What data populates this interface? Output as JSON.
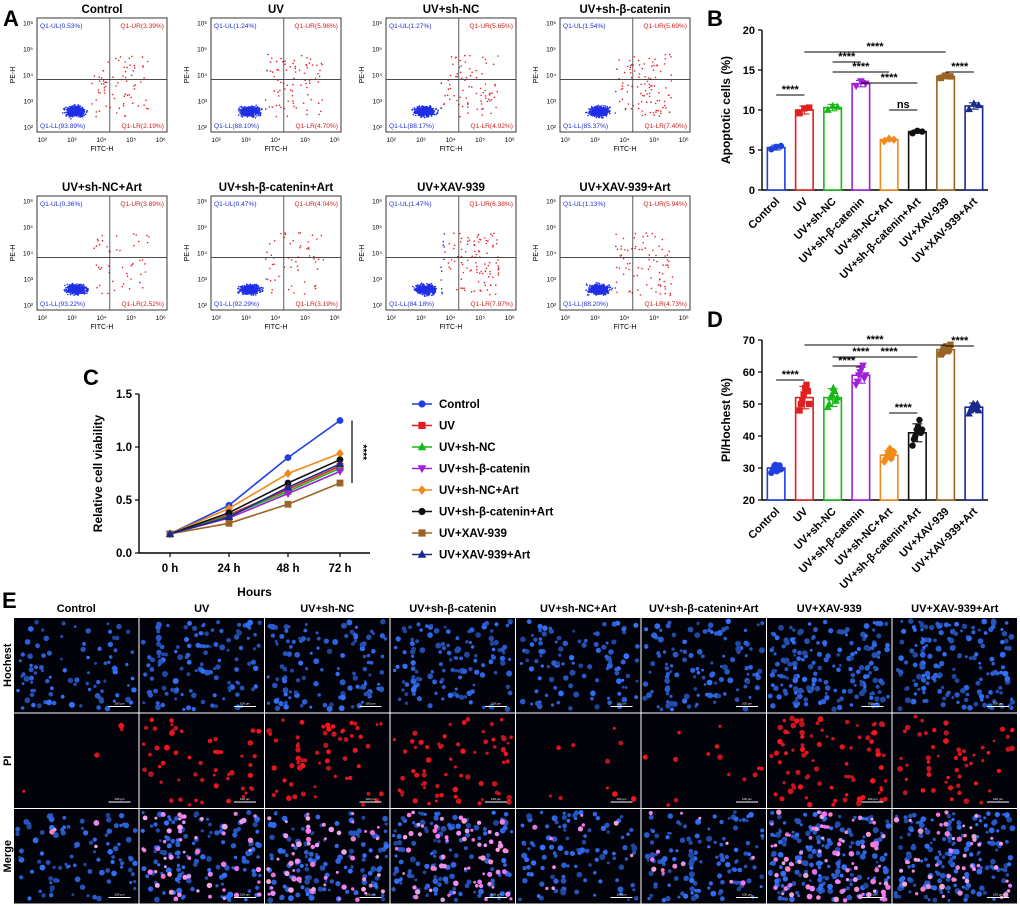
{
  "panel_letters": [
    "A",
    "B",
    "C",
    "D",
    "E"
  ],
  "flow": {
    "xlabel": "FITC-H",
    "ylabel": "PE-H",
    "ticks": [
      "10²",
      "10³",
      "10⁴",
      "10⁵",
      "10⁶"
    ],
    "panels": [
      {
        "title": "Control",
        "ul": "Q1-UL(0.53%)",
        "ur": "Q1-UR(3.39%)",
        "ll": "Q1-LL(93.89%)",
        "lr": "Q1-LR(2.19%)"
      },
      {
        "title": "UV",
        "ul": "Q1-UL(1.24%)",
        "ur": "Q1-UR(5.96%)",
        "ll": "Q1-LL(88.10%)",
        "lr": "Q1-LR(4.70%)"
      },
      {
        "title": "UV+sh-NC",
        "ul": "Q1-UL(1.27%)",
        "ur": "Q1-UR(5.65%)",
        "ll": "Q1-LL(88.17%)",
        "lr": "Q1-LR(4.92%)"
      },
      {
        "title": "UV+sh-β-catenin",
        "ul": "Q1-UL(1.54%)",
        "ur": "Q1-UR(5.69%)",
        "ll": "Q1-LL(85.37%)",
        "lr": "Q1-LR(7.40%)"
      },
      {
        "title": "UV+sh-NC+Art",
        "ul": "Q1-UL(0.36%)",
        "ur": "Q1-UR(3.89%)",
        "ll": "Q1-LL(93.22%)",
        "lr": "Q1-LR(2.52%)"
      },
      {
        "title": "UV+sh-β-catenin+Art",
        "ul": "Q1-UL(0.47%)",
        "ur": "Q1-UR(4.04%)",
        "ll": "Q1-LL(92.29%)",
        "lr": "Q1-LR(3.19%)"
      },
      {
        "title": "UV+XAV-939",
        "ul": "Q1-UL(1.47%)",
        "ur": "Q1-UR(6.38%)",
        "ll": "Q1-LL(84.18%)",
        "lr": "Q1-LR(7.97%)"
      },
      {
        "title": "UV+XAV-939+Art",
        "ul": "Q1-UL(1.13%)",
        "ur": "Q1-UR(5.94%)",
        "ll": "Q1-LL(88.20%)",
        "lr": "Q1-LR(4.73%)"
      }
    ]
  },
  "groups": [
    "Control",
    "UV",
    "UV+sh-NC",
    "UV+sh-β-catenin",
    "UV+sh-NC+Art",
    "UV+sh-β-catenin+Art",
    "UV+XAV-939",
    "UV+XAV-939+Art"
  ],
  "colors": {
    "Control": "#1f3fe0",
    "UV": "#e02020",
    "UV+sh-NC": "#18b818",
    "UV+sh-β-catenin": "#a020d8",
    "UV+sh-NC+Art": "#f08a1a",
    "UV+sh-β-catenin+Art": "#111111",
    "UV+XAV-939": "#9a6424",
    "UV+XAV-939+Art": "#1a2a8c",
    "flow_blue": "#1f2fe6",
    "flow_red": "#e8202a"
  },
  "chart_data": [
    {
      "id": "B",
      "type": "bar",
      "categories": [
        "Control",
        "UV",
        "UV+sh-NC",
        "UV+sh-β-catenin",
        "UV+sh-NC+Art",
        "UV+sh-β-catenin+Art",
        "UV+XAV-939",
        "UV+XAV-939+Art"
      ],
      "values": [
        5.3,
        10.0,
        10.3,
        13.3,
        6.3,
        7.3,
        14.2,
        10.5
      ],
      "errors": [
        0.3,
        0.5,
        0.4,
        0.4,
        0.2,
        0.2,
        0.3,
        0.4
      ],
      "points": [
        [
          5.1,
          5.4,
          5.5
        ],
        [
          9.6,
          10.2,
          10.3
        ],
        [
          10.0,
          10.5,
          10.4
        ],
        [
          13.0,
          13.6,
          13.3
        ],
        [
          6.1,
          6.4,
          6.3
        ],
        [
          7.1,
          7.4,
          7.3
        ],
        [
          14.0,
          14.3,
          14.2
        ],
        [
          10.1,
          10.8,
          10.6
        ]
      ],
      "markers": [
        "circle",
        "square",
        "triangle",
        "triangle-down",
        "diamond",
        "circle",
        "square",
        "triangle"
      ],
      "ylabel": "Apoptotic cells (%)",
      "ylim": [
        0,
        20
      ],
      "yticks": [
        "0",
        "5",
        "10",
        "15",
        "20"
      ],
      "significance": [
        {
          "from": 0,
          "to": 1,
          "label": "****"
        },
        {
          "from": 1,
          "to": 6,
          "label": "****"
        },
        {
          "from": 2,
          "to": 4,
          "label": "****"
        },
        {
          "from": 2,
          "to": 3,
          "label": "****"
        },
        {
          "from": 3,
          "to": 5,
          "label": "****"
        },
        {
          "from": 4,
          "to": 5,
          "label": "ns"
        },
        {
          "from": 6,
          "to": 7,
          "label": "****"
        }
      ]
    },
    {
      "id": "C",
      "type": "line",
      "x": [
        "0 h",
        "24 h",
        "48 h",
        "72 h"
      ],
      "xlabel": "Hours",
      "ylabel": "Relative cell viability",
      "ylim": [
        0,
        1.5
      ],
      "yticks": [
        "0.0",
        "0.5",
        "1.0",
        "1.5"
      ],
      "series": [
        {
          "name": "Control",
          "marker": "circle",
          "values": [
            0.18,
            0.45,
            0.9,
            1.25
          ]
        },
        {
          "name": "UV",
          "marker": "square",
          "values": [
            0.18,
            0.36,
            0.6,
            0.82
          ]
        },
        {
          "name": "UV+sh-NC",
          "marker": "triangle",
          "values": [
            0.18,
            0.35,
            0.58,
            0.8
          ]
        },
        {
          "name": "UV+sh-β-catenin",
          "marker": "triangle-down",
          "values": [
            0.18,
            0.33,
            0.56,
            0.77
          ]
        },
        {
          "name": "UV+sh-NC+Art",
          "marker": "diamond",
          "values": [
            0.18,
            0.42,
            0.75,
            0.94
          ]
        },
        {
          "name": "UV+sh-β-catenin+Art",
          "marker": "circle",
          "values": [
            0.18,
            0.38,
            0.66,
            0.88
          ]
        },
        {
          "name": "UV+XAV-939",
          "marker": "square",
          "values": [
            0.18,
            0.28,
            0.46,
            0.66
          ]
        },
        {
          "name": "UV+XAV-939+Art",
          "marker": "triangle",
          "values": [
            0.18,
            0.34,
            0.62,
            0.84
          ]
        }
      ],
      "significance_label": "****"
    },
    {
      "id": "D",
      "type": "bar",
      "categories": [
        "Control",
        "UV",
        "UV+sh-NC",
        "UV+sh-β-catenin",
        "UV+sh-NC+Art",
        "UV+sh-β-catenin+Art",
        "UV+XAV-939",
        "UV+XAV-939+Art"
      ],
      "values": [
        30,
        52,
        52,
        59,
        34,
        41,
        67,
        49
      ],
      "errors": [
        1.2,
        3.5,
        2.8,
        2.5,
        1.5,
        2.8,
        1.2,
        1.3
      ],
      "points": [
        [
          28.5,
          29.4,
          30.2,
          31.0,
          29.0,
          30.5,
          30.8,
          29.6
        ],
        [
          48,
          50,
          51,
          53,
          55,
          56,
          54,
          50
        ],
        [
          49,
          50,
          52,
          53,
          55,
          54,
          51,
          52
        ],
        [
          56,
          57,
          59,
          60,
          61,
          62,
          58,
          59
        ],
        [
          32,
          33,
          34,
          35,
          36,
          33,
          34,
          35
        ],
        [
          37,
          39,
          40,
          42,
          43,
          45,
          41,
          42
        ],
        [
          65.5,
          66,
          67,
          67.5,
          68,
          66.5,
          67,
          68.5
        ],
        [
          47,
          48,
          49,
          50,
          49.5,
          48.5,
          50,
          48
        ]
      ],
      "markers": [
        "circle",
        "square",
        "triangle",
        "triangle-down",
        "diamond",
        "circle",
        "square",
        "triangle"
      ],
      "ylabel": "PI/Hochest (%)",
      "ylim": [
        20,
        70
      ],
      "yticks": [
        "20",
        "30",
        "40",
        "50",
        "60",
        "70"
      ],
      "significance": [
        {
          "from": 0,
          "to": 1,
          "label": "****"
        },
        {
          "from": 1,
          "to": 6,
          "label": "****"
        },
        {
          "from": 2,
          "to": 4,
          "label": "****"
        },
        {
          "from": 2,
          "to": 3,
          "label": "****"
        },
        {
          "from": 3,
          "to": 5,
          "label": "****"
        },
        {
          "from": 4,
          "to": 5,
          "label": "****"
        },
        {
          "from": 6,
          "to": 7,
          "label": "****"
        }
      ]
    }
  ],
  "microscopy": {
    "columns": [
      "Control",
      "UV",
      "UV+sh-NC",
      "UV+sh-β-catenin",
      "UV+sh-NC+Art",
      "UV+sh-β-catenin+Art",
      "UV+XAV-939",
      "UV+XAV-939+Art"
    ],
    "rows": [
      "Hochest",
      "PI",
      "Merge"
    ],
    "scale_label": "100 μm",
    "blue_density": [
      0.35,
      0.55,
      0.55,
      0.6,
      0.45,
      0.55,
      0.95,
      0.85
    ],
    "red_density": [
      0.03,
      0.45,
      0.5,
      0.55,
      0.08,
      0.12,
      0.7,
      0.45
    ]
  }
}
